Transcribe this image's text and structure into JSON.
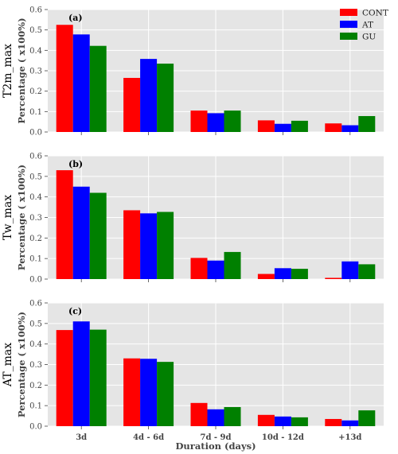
{
  "chart_data": [
    {
      "type": "bar",
      "panel_label": "(a)",
      "ylabel_top": "T2m_max",
      "ylabel": "Percentage ( x100%)",
      "categories": [
        "3d",
        "4d - 6d",
        "7d - 9d",
        "10d - 12d",
        "+13d"
      ],
      "series": [
        {
          "name": "CONT",
          "values": [
            0.525,
            0.265,
            0.105,
            0.057,
            0.042
          ]
        },
        {
          "name": "AT",
          "values": [
            0.478,
            0.358,
            0.092,
            0.04,
            0.033
          ]
        },
        {
          "name": "GU",
          "values": [
            0.422,
            0.335,
            0.105,
            0.055,
            0.078
          ]
        }
      ],
      "ylim": [
        0,
        0.6
      ],
      "yticks": [
        "0.0",
        "0.1",
        "0.2",
        "0.3",
        "0.4",
        "0.5",
        "0.6"
      ],
      "grid": true,
      "legend": "top-right"
    },
    {
      "type": "bar",
      "panel_label": "(b)",
      "ylabel_top": "Tw_max",
      "ylabel": "Percentage ( x100%)",
      "categories": [
        "3d",
        "4d - 6d",
        "7d - 9d",
        "10d - 12d",
        "+13d"
      ],
      "series": [
        {
          "name": "CONT",
          "values": [
            0.53,
            0.335,
            0.103,
            0.025,
            0.006
          ]
        },
        {
          "name": "AT",
          "values": [
            0.45,
            0.32,
            0.09,
            0.053,
            0.086
          ]
        },
        {
          "name": "GU",
          "values": [
            0.42,
            0.327,
            0.132,
            0.05,
            0.072
          ]
        }
      ],
      "ylim": [
        0,
        0.6
      ],
      "yticks": [
        "0.0",
        "0.1",
        "0.2",
        "0.3",
        "0.4",
        "0.5",
        "0.6"
      ],
      "grid": true
    },
    {
      "type": "bar",
      "panel_label": "(c)",
      "ylabel_top": "AT_max",
      "ylabel": "Percentage ( x100%)",
      "categories": [
        "3d",
        "4d - 6d",
        "7d - 9d",
        "10d - 12d",
        "+13d"
      ],
      "series": [
        {
          "name": "CONT",
          "values": [
            0.468,
            0.33,
            0.113,
            0.055,
            0.035
          ]
        },
        {
          "name": "AT",
          "values": [
            0.51,
            0.328,
            0.082,
            0.047,
            0.028
          ]
        },
        {
          "name": "GU",
          "values": [
            0.47,
            0.313,
            0.093,
            0.043,
            0.077
          ]
        }
      ],
      "ylim": [
        0,
        0.6
      ],
      "yticks": [
        "0.0",
        "0.1",
        "0.2",
        "0.3",
        "0.4",
        "0.5",
        "0.6"
      ],
      "grid": true
    }
  ],
  "xlabel": "Duration (days)",
  "legend": [
    {
      "name": "CONT",
      "color": "#ff0000"
    },
    {
      "name": "AT",
      "color": "#0000ff"
    },
    {
      "name": "GU",
      "color": "#008000"
    }
  ],
  "colors": {
    "panel_background": "#e5e5e5",
    "grid": "#ffffff"
  }
}
